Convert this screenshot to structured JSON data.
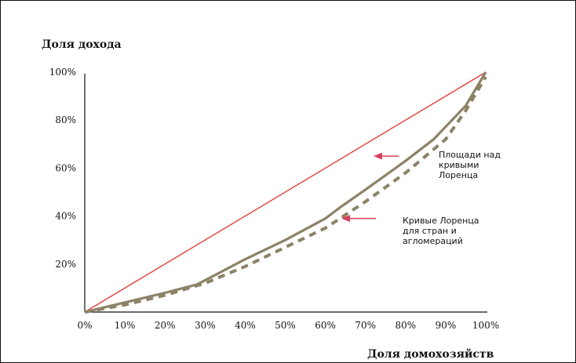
{
  "chart_data": {
    "type": "line",
    "title": "",
    "ylabel": "Доля дохода",
    "xlabel": "Доля домохозяйств",
    "xlim": [
      0,
      100
    ],
    "ylim": [
      0,
      100
    ],
    "x_ticks": [
      "0%",
      "10%",
      "20%",
      "30%",
      "40%",
      "50%",
      "60%",
      "70%",
      "80%",
      "90%",
      "100%"
    ],
    "y_ticks": [
      "20%",
      "40%",
      "60%",
      "80%",
      "100%"
    ],
    "y_tick_values": [
      20,
      40,
      60,
      80,
      100
    ],
    "grid": false,
    "series": [
      {
        "style": "solid-thin",
        "color": "#e0403a",
        "x": [
          0,
          100
        ],
        "y": [
          0,
          100
        ]
      },
      {
        "style": "solid-thick",
        "color": "#8c8266",
        "x": [
          0,
          10,
          20,
          28,
          40,
          50,
          60,
          64,
          70,
          80,
          87,
          95,
          100
        ],
        "y": [
          0,
          4,
          8,
          11.5,
          22,
          30,
          39,
          44,
          51,
          63,
          72,
          86,
          100
        ]
      },
      {
        "style": "dashed",
        "color": "#8c8266",
        "x": [
          0,
          10,
          20,
          30,
          40,
          50,
          60,
          70,
          80,
          90,
          95,
          100
        ],
        "y": [
          0,
          3,
          7,
          12,
          19,
          27,
          35,
          46,
          58,
          72,
          84,
          98
        ]
      }
    ],
    "annotations": [
      {
        "text_lines": [
          "Площади над",
          "кривыми",
          "Лоренца"
        ],
        "arrow_to": {
          "x": 72,
          "y": 65
        },
        "arrow_color": "#d8405a"
      },
      {
        "text_lines": [
          "Кривые Лоренца",
          "для стран и",
          "агломераций"
        ],
        "arrow_to": {
          "x": 64,
          "y": 39
        },
        "arrow_color": "#d8405a"
      }
    ]
  }
}
